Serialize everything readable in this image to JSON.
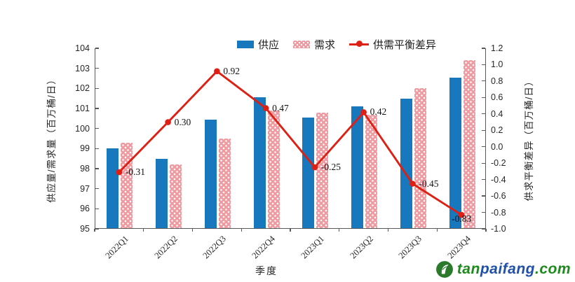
{
  "chart_data": {
    "type": "bar+line",
    "categories": [
      "2022Q1",
      "2022Q2",
      "2022Q3",
      "2022Q4",
      "2023Q1",
      "2023Q2",
      "2023Q3",
      "2023Q4"
    ],
    "series": [
      {
        "name": "供应",
        "type": "bar",
        "axis": "left",
        "color": "#1878be",
        "values": [
          99.0,
          98.5,
          100.45,
          101.55,
          100.55,
          101.1,
          101.5,
          102.55
        ]
      },
      {
        "name": "需求",
        "type": "bar",
        "axis": "left",
        "color": "#ef9ba2",
        "pattern": "white-dots",
        "values": [
          99.3,
          98.2,
          99.5,
          100.9,
          100.8,
          100.7,
          102.0,
          103.4
        ]
      },
      {
        "name": "供需平衡差异",
        "type": "line",
        "axis": "right",
        "color": "#dd1f14",
        "values": [
          -0.31,
          0.3,
          0.92,
          0.47,
          -0.25,
          0.42,
          -0.45,
          -0.83
        ],
        "point_labels": [
          "-0.31",
          "0.30",
          "0.92",
          "0.47",
          "-0.25",
          "0.42",
          "-0.45",
          "-0.83"
        ],
        "label_offsets_override": {
          "7": [
            -14,
            6
          ]
        }
      }
    ],
    "left_axis": {
      "title": "供应量/需求量（百万桶/日）",
      "min": 95,
      "max": 104,
      "step": 1,
      "ticks": [
        "95",
        "96",
        "97",
        "98",
        "99",
        "100",
        "101",
        "102",
        "103",
        "104"
      ]
    },
    "right_axis": {
      "title": "供求平衡差异（百万桶/日）",
      "min": -1.0,
      "max": 1.2,
      "step": 0.2,
      "ticks": [
        "-1.0",
        "-0.8",
        "-0.6",
        "-0.4",
        "-0.2",
        "0.0",
        "0.2",
        "0.4",
        "0.6",
        "0.8",
        "1.0",
        "1.2"
      ]
    },
    "x_axis": {
      "title": "季度"
    },
    "legend_position": "top",
    "grid": false
  },
  "watermark": {
    "segments": [
      {
        "text": "tan",
        "color": "#1d8a1d"
      },
      {
        "text": "paifang",
        "color": "#2050a8"
      },
      {
        "text": ".com",
        "color": "#1d8a1d"
      }
    ]
  }
}
